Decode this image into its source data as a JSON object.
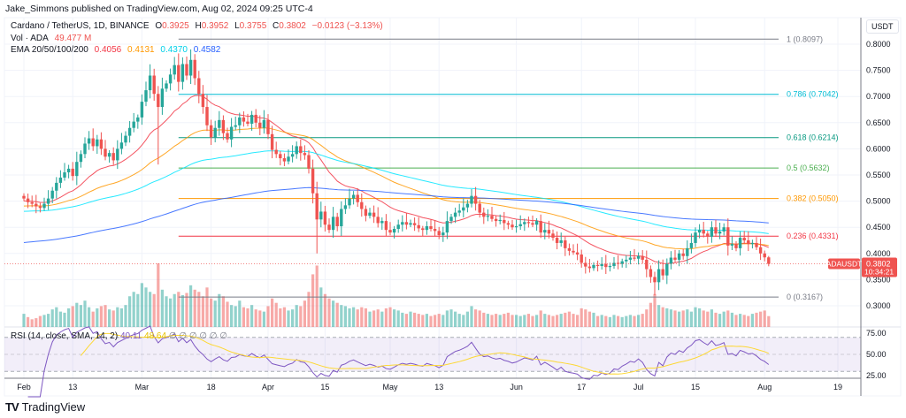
{
  "header": {
    "published": "Jake_Simmons published on TradingView.com, Aug 02, 2024 09:25 UTC-4"
  },
  "legend": {
    "symbol": "Cardano / TetherUS, 1D, BINANCE",
    "open_label": "O",
    "open": "0.3925",
    "high_label": "H",
    "high": "0.3952",
    "low_label": "L",
    "low": "0.3755",
    "close_label": "C",
    "close": "0.3802",
    "change": "−0.0123 (−3.13%)",
    "vol_label": "Vol · ADA",
    "vol": "49.477 M",
    "ema_label": "EMA 20/50/100/200",
    "ema20": "0.4056",
    "ema50": "0.4131",
    "ema100": "0.4370",
    "ema200": "0.4582"
  },
  "rsi_legend": {
    "label": "RSI (14, close, SMA, 14, 2)",
    "rsi": "40.11",
    "sma": "48.64",
    "empty": "∅ ∅ ∅ ∅ ∅ ∅"
  },
  "price_axis": {
    "currency": "USDT",
    "ticks": [
      "0.8000",
      "0.7500",
      "0.7000",
      "0.6500",
      "0.6000",
      "0.5500",
      "0.5000",
      "0.4500",
      "0.4000",
      "0.3500",
      "0.3000"
    ]
  },
  "rsi_axis": {
    "ticks": [
      "75.00",
      "50.00",
      "25.00"
    ]
  },
  "last_price": {
    "symbol": "ADAUSDT",
    "price": "0.3802",
    "countdown": "10:34:21"
  },
  "brand": {
    "name": "TradingView"
  },
  "colors": {
    "up": "#26a69a",
    "down": "#ef5350",
    "ema20": "#f23645",
    "ema50": "#ff9800",
    "ema100": "#00e5ff",
    "ema200": "#2962ff",
    "rsi": "#7e57c2",
    "rsi_sma": "#fdd835"
  },
  "chart_data": {
    "type": "candlestick",
    "title": "Cardano / TetherUS, 1D, BINANCE",
    "start_date": "2024-02-01",
    "x_ticks": [
      {
        "label": "Feb",
        "day": 0
      },
      {
        "label": "13",
        "day": 12
      },
      {
        "label": "Mar",
        "day": 29
      },
      {
        "label": "18",
        "day": 46
      },
      {
        "label": "Apr",
        "day": 60
      },
      {
        "label": "15",
        "day": 74
      },
      {
        "label": "May",
        "day": 90
      },
      {
        "label": "13",
        "day": 102
      },
      {
        "label": "Jun",
        "day": 121
      },
      {
        "label": "17",
        "day": 137
      },
      {
        "label": "Jul",
        "day": 151
      },
      {
        "label": "15",
        "day": 165
      },
      {
        "label": "Aug",
        "day": 182
      },
      {
        "label": "19",
        "day": 200
      }
    ],
    "ylim": [
      0.26,
      0.84
    ],
    "closes": [
      0.505,
      0.498,
      0.495,
      0.49,
      0.487,
      0.495,
      0.505,
      0.52,
      0.535,
      0.545,
      0.555,
      0.562,
      0.548,
      0.575,
      0.59,
      0.61,
      0.62,
      0.605,
      0.618,
      0.6,
      0.585,
      0.592,
      0.578,
      0.6,
      0.612,
      0.625,
      0.64,
      0.652,
      0.66,
      0.69,
      0.712,
      0.74,
      0.705,
      0.68,
      0.715,
      0.725,
      0.742,
      0.76,
      0.728,
      0.762,
      0.74,
      0.77,
      0.735,
      0.705,
      0.68,
      0.645,
      0.622,
      0.64,
      0.655,
      0.63,
      0.618,
      0.642,
      0.645,
      0.66,
      0.652,
      0.648,
      0.665,
      0.65,
      0.64,
      0.655,
      0.628,
      0.598,
      0.59,
      0.582,
      0.576,
      0.585,
      0.59,
      0.605,
      0.592,
      0.588,
      0.562,
      0.515,
      0.465,
      0.48,
      0.455,
      0.445,
      0.47,
      0.452,
      0.485,
      0.492,
      0.505,
      0.512,
      0.498,
      0.485,
      0.472,
      0.478,
      0.47,
      0.458,
      0.462,
      0.445,
      0.44,
      0.447,
      0.455,
      0.46,
      0.455,
      0.458,
      0.454,
      0.448,
      0.445,
      0.452,
      0.447,
      0.443,
      0.435,
      0.44,
      0.462,
      0.47,
      0.478,
      0.482,
      0.488,
      0.495,
      0.51,
      0.495,
      0.478,
      0.47,
      0.472,
      0.466,
      0.462,
      0.464,
      0.458,
      0.455,
      0.45,
      0.452,
      0.456,
      0.46,
      0.458,
      0.455,
      0.462,
      0.44,
      0.445,
      0.438,
      0.43,
      0.42,
      0.425,
      0.41,
      0.405,
      0.402,
      0.398,
      0.382,
      0.375,
      0.372,
      0.378,
      0.376,
      0.38,
      0.374,
      0.376,
      0.382,
      0.38,
      0.385,
      0.388,
      0.392,
      0.39,
      0.395,
      0.388,
      0.37,
      0.355,
      0.345,
      0.37,
      0.358,
      0.38,
      0.392,
      0.388,
      0.4,
      0.395,
      0.41,
      0.42,
      0.44,
      0.445,
      0.438,
      0.432,
      0.45,
      0.438,
      0.442,
      0.45,
      0.415,
      0.418,
      0.41,
      0.43,
      0.425,
      0.418,
      0.42,
      0.412,
      0.4,
      0.3925,
      0.3802
    ],
    "last_candle": {
      "open": 0.3925,
      "high": 0.3952,
      "low": 0.3755,
      "close": 0.3802
    },
    "volume_millions": [
      60,
      45,
      35,
      40,
      50,
      55,
      60,
      80,
      90,
      70,
      65,
      85,
      95,
      110,
      100,
      120,
      90,
      70,
      85,
      95,
      100,
      80,
      75,
      90,
      85,
      100,
      140,
      160,
      150,
      200,
      180,
      160,
      150,
      290,
      170,
      140,
      130,
      150,
      160,
      145,
      155,
      190,
      170,
      160,
      140,
      180,
      130,
      120,
      150,
      140,
      115,
      100,
      95,
      120,
      90,
      85,
      100,
      80,
      75,
      70,
      95,
      130,
      110,
      85,
      90,
      75,
      80,
      100,
      95,
      120,
      160,
      240,
      280,
      180,
      150,
      130,
      120,
      110,
      100,
      95,
      85,
      90,
      80,
      90,
      85,
      70,
      75,
      80,
      70,
      85,
      90,
      80,
      75,
      65,
      60,
      70,
      65,
      60,
      55,
      60,
      50,
      55,
      60,
      55,
      75,
      80,
      70,
      60,
      55,
      70,
      95,
      80,
      75,
      65,
      60,
      55,
      60,
      55,
      60,
      65,
      55,
      55,
      50,
      55,
      60,
      50,
      55,
      75,
      60,
      55,
      50,
      55,
      60,
      65,
      70,
      60,
      55,
      85,
      80,
      70,
      65,
      50,
      55,
      50,
      45,
      55,
      50,
      45,
      50,
      55,
      50,
      55,
      60,
      80,
      110,
      150,
      100,
      90,
      85,
      80,
      75,
      70,
      75,
      80,
      70,
      90,
      85,
      75,
      70,
      80,
      65,
      60,
      70,
      75,
      65,
      55,
      60,
      55,
      50,
      60,
      65,
      70,
      75,
      49.477
    ],
    "fib_levels": [
      {
        "ratio": "1",
        "price": 0.8097,
        "label": "1 (0.8097)",
        "color": "#787b86"
      },
      {
        "ratio": "0.786",
        "price": 0.7042,
        "label": "0.786 (0.7042)",
        "color": "#00bcd4"
      },
      {
        "ratio": "0.618",
        "price": 0.6214,
        "label": "0.618 (0.6214)",
        "color": "#089981"
      },
      {
        "ratio": "0.5",
        "price": 0.5632,
        "label": "0.5 (0.5632)",
        "color": "#4caf50"
      },
      {
        "ratio": "0.382",
        "price": 0.505,
        "label": "0.382 (0.5050)",
        "color": "#ff9800"
      },
      {
        "ratio": "0.236",
        "price": 0.4331,
        "label": "0.236 (0.4331)",
        "color": "#f23645"
      },
      {
        "ratio": "0",
        "price": 0.3167,
        "label": "0 (0.3167)",
        "color": "#787b86"
      }
    ],
    "rsi_range": [
      20,
      82
    ],
    "rsi_bands": [
      70,
      50,
      30
    ]
  }
}
